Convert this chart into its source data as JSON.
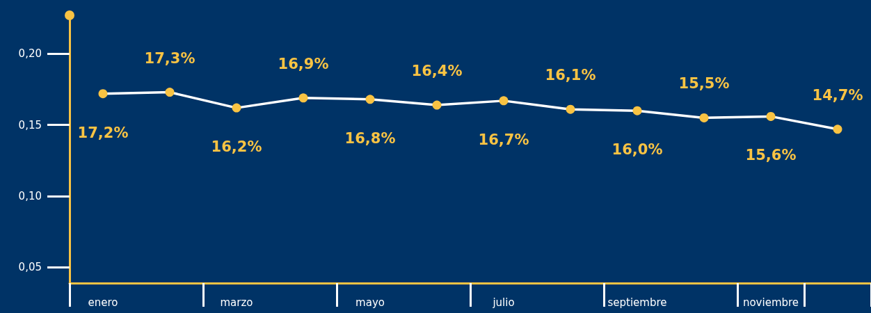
{
  "chart_data": {
    "type": "line",
    "categories": [
      "enero",
      null,
      "marzo",
      null,
      "mayo",
      null,
      "julio",
      null,
      "septiembre",
      null,
      "noviembre",
      null
    ],
    "series": [
      {
        "color": "#f9c343",
        "values": [
          0.172,
          0.173,
          0.162,
          0.169,
          0.168,
          0.164,
          0.167,
          0.161,
          0.16,
          0.155,
          0.156,
          0.147
        ],
        "value_labels": [
          "17,2%",
          "17,3%",
          "16,2%",
          "16,9%",
          "16,8%",
          "16,4%",
          "16,7%",
          "16,1%",
          "16,0%",
          "15,5%",
          "15,6%",
          "14,7%"
        ]
      }
    ],
    "ylim": [
      0.039,
      0.227
    ],
    "yticks": [
      {
        "value": 0.05,
        "label": "0,05"
      },
      {
        "value": 0.1,
        "label": "0,10"
      },
      {
        "value": 0.15,
        "label": "0,15"
      },
      {
        "value": 0.2,
        "label": "0,20"
      }
    ],
    "marker": "circle",
    "line_style": "solid",
    "grid": false
  }
}
